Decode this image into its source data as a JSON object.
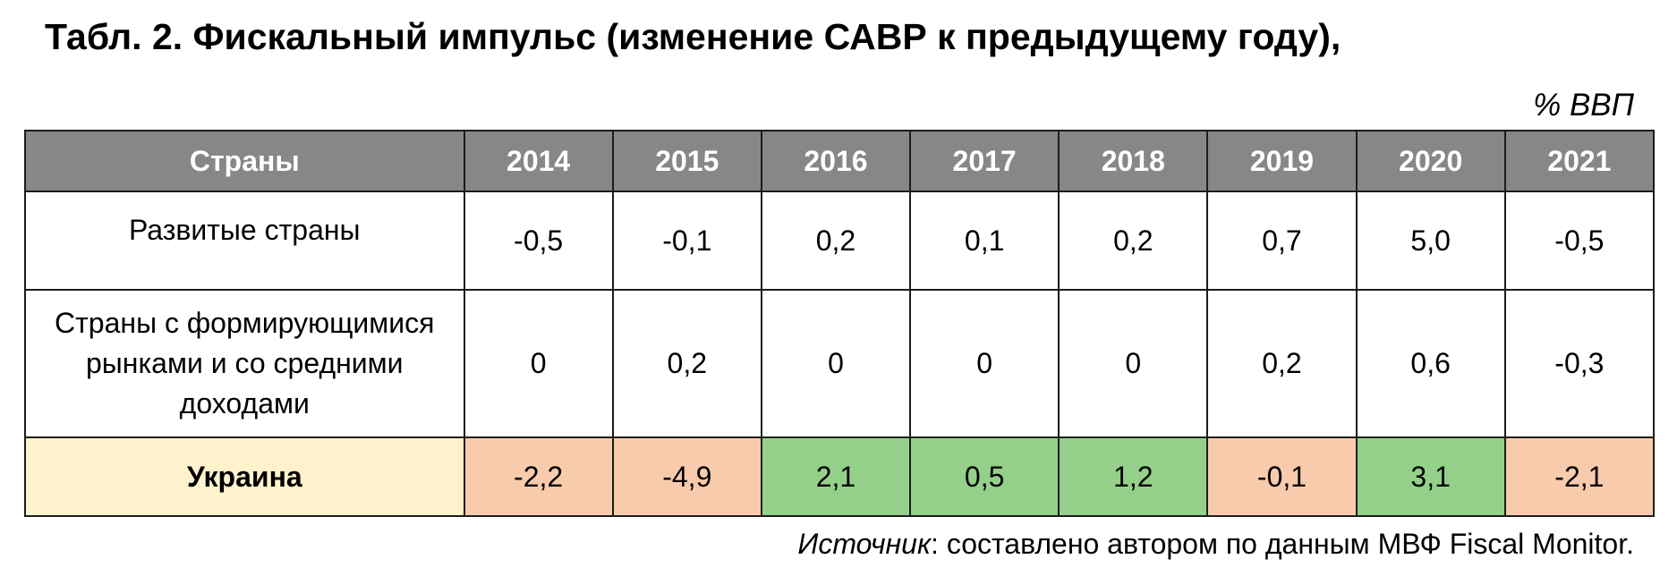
{
  "title": "Табл. 2. Фискальный импульс (изменение САВР к предыдущему году),",
  "unit": "% ВВП",
  "table": {
    "header_country": "Страны",
    "years": [
      "2014",
      "2015",
      "2016",
      "2017",
      "2018",
      "2019",
      "2020",
      "2021"
    ],
    "rows": [
      {
        "country": "Развитые страны",
        "values": [
          "-0,5",
          "-0,1",
          "0,2",
          "0,1",
          "0,2",
          "0,7",
          "5,0",
          "-0,5"
        ]
      },
      {
        "country": "Страны с формирующимися рынками и со средними доходами",
        "values": [
          "0",
          "0,2",
          "0",
          "0",
          "0",
          "0,2",
          "0,6",
          "-0,3"
        ]
      },
      {
        "country": "Украина",
        "values": [
          "-2,2",
          "-4,9",
          "2,1",
          "0,5",
          "1,2",
          "-0,1",
          "3,1",
          "-2,1"
        ]
      }
    ]
  },
  "colors": {
    "header_bg": "#878787",
    "ukraine_label_bg": "#fff2cc",
    "negative_bg": "#f8cbad",
    "positive_bg": "#95d08a"
  },
  "source": {
    "label": "Источник",
    "text": ": составлено автором по данным МВФ Fiscal Monitor."
  }
}
